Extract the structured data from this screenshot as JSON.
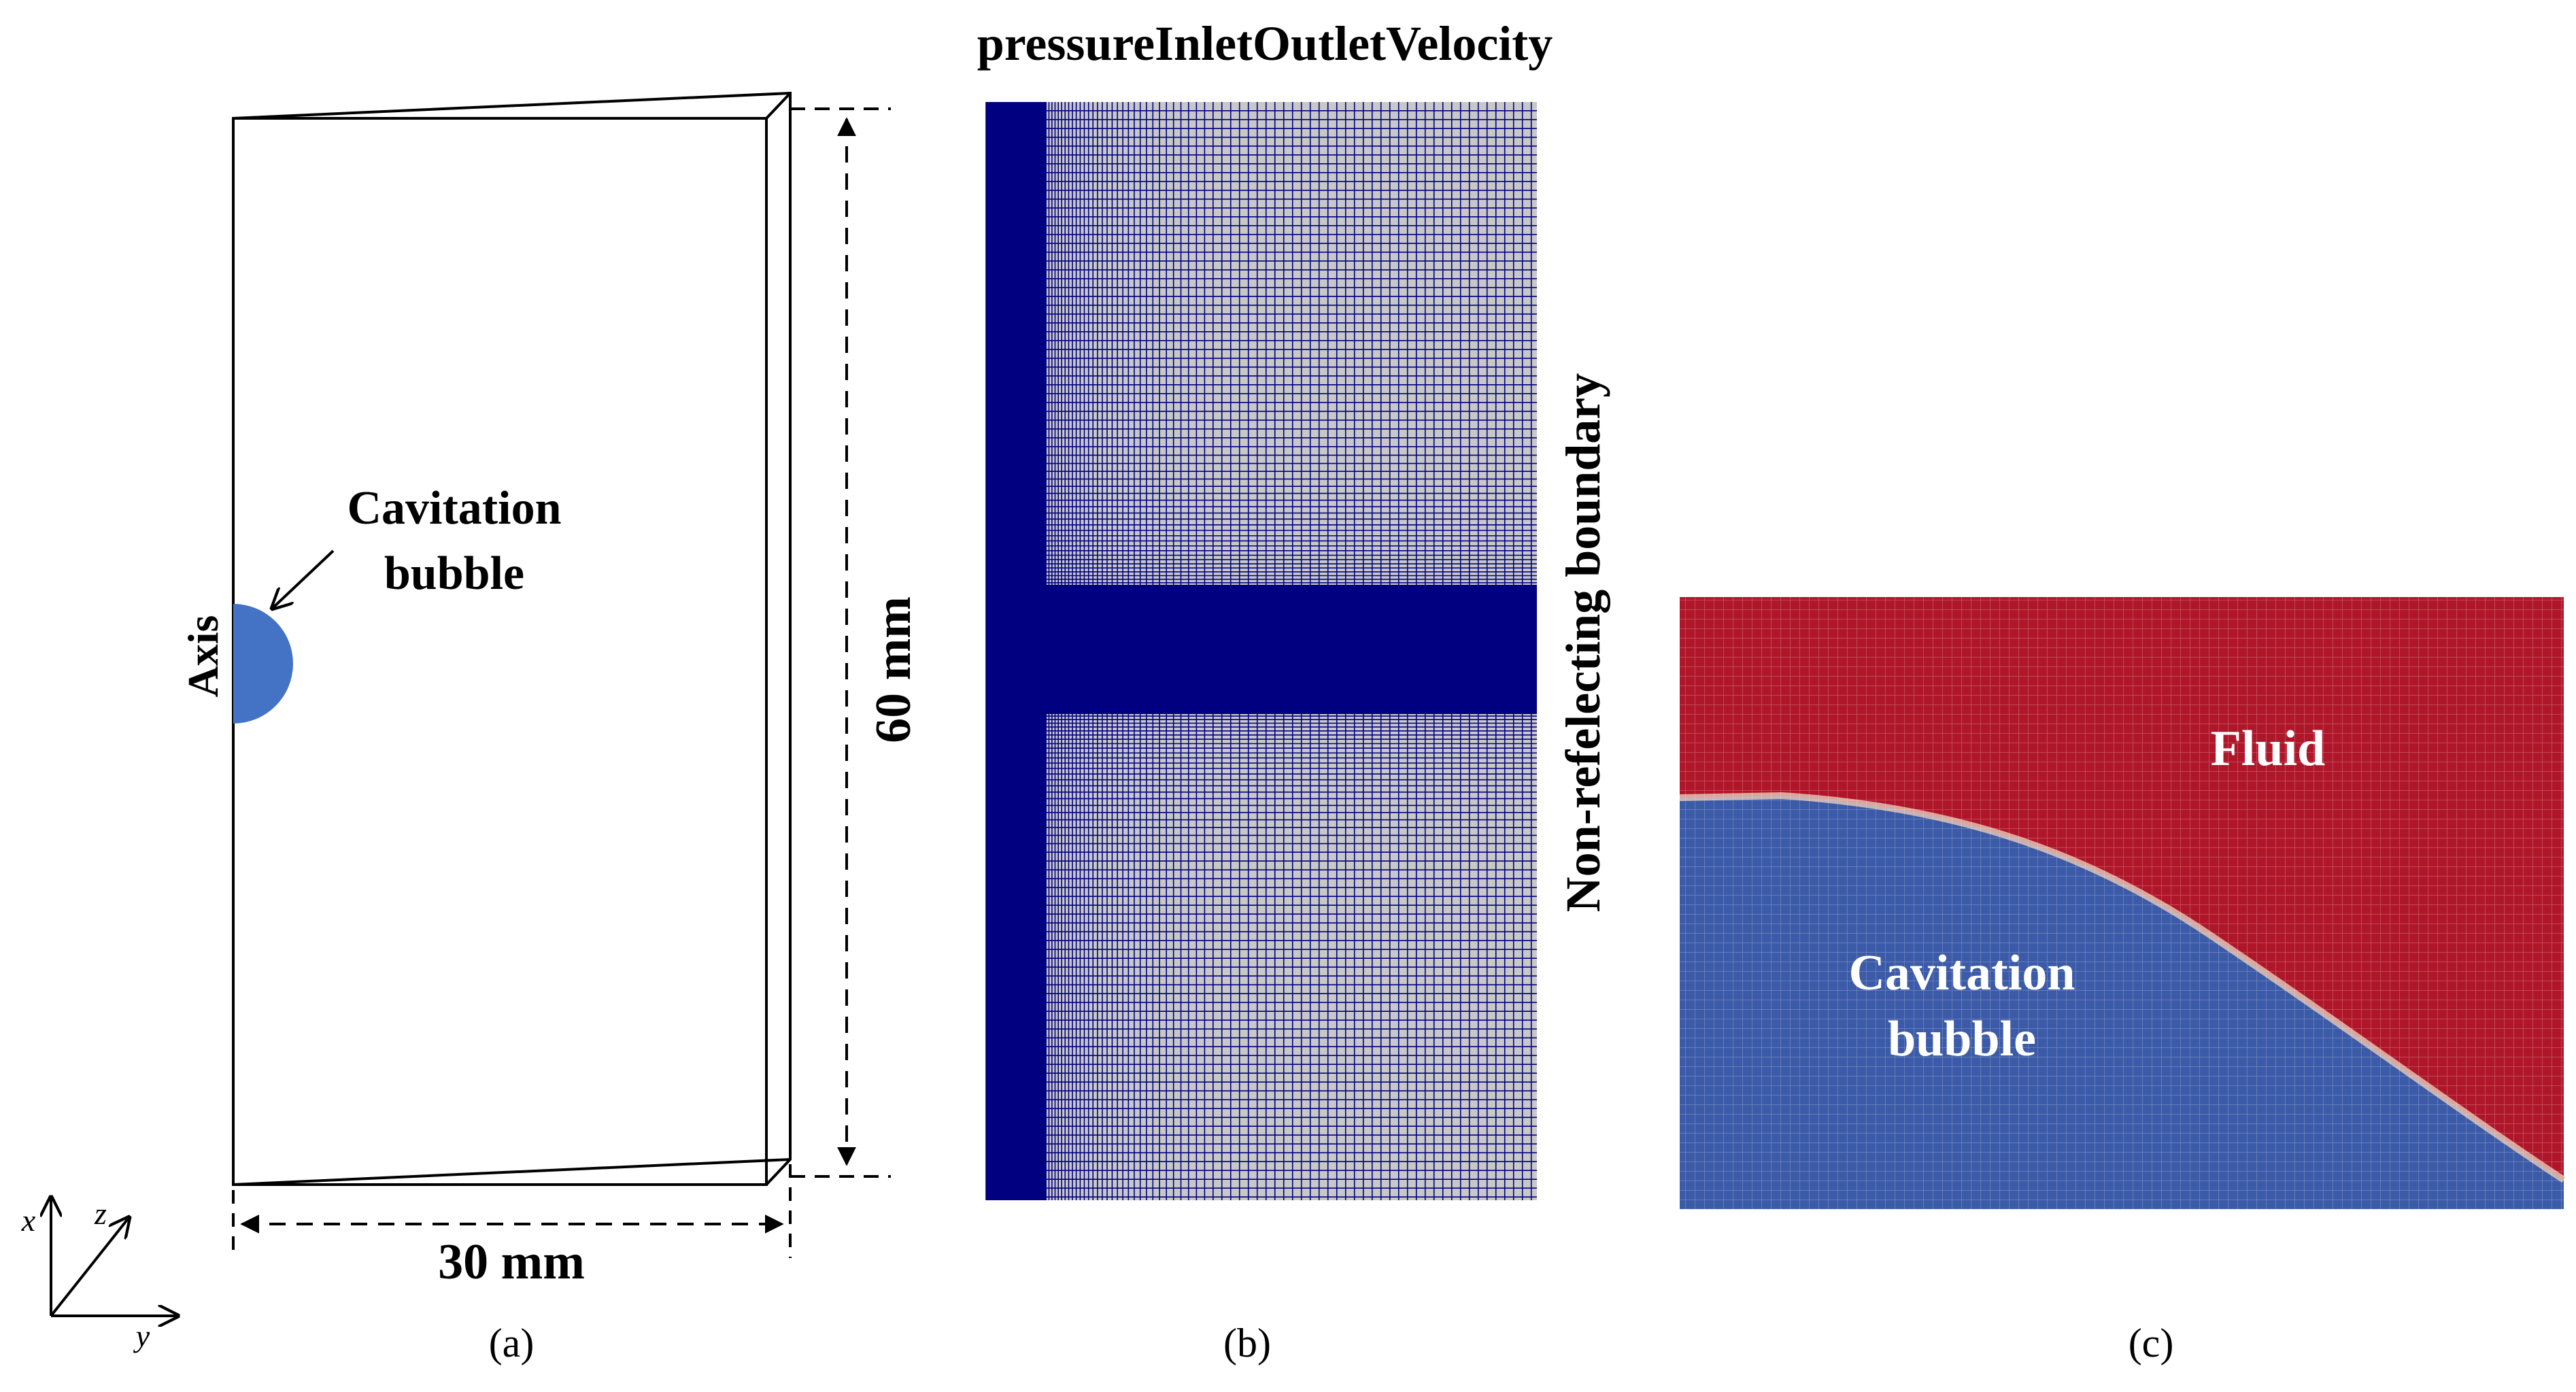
{
  "panel_a": {
    "bubble_label_line1": "Cavitation",
    "bubble_label_line2": "bubble",
    "axis_label": "Axis",
    "height_dimension": "60 mm",
    "width_dimension": "30 mm",
    "caption": "(a)",
    "coord_x": "x",
    "coord_y": "y",
    "coord_z": "z",
    "bubble_color": "#4472c4"
  },
  "panel_b": {
    "top_boundary_label": "pressureInletOutletVelocity",
    "right_boundary_label": "Non-refelecting boundary",
    "caption": "(b)",
    "mesh_line_color": "#000080",
    "mesh_background_color": "#c8c8c8"
  },
  "panel_c": {
    "fluid_label": "Fluid",
    "bubble_label_line1": "Cavitation",
    "bubble_label_line2": "bubble",
    "caption": "(c)",
    "fluid_color": "#b0162a",
    "bubble_color": "#3b5aa8"
  }
}
